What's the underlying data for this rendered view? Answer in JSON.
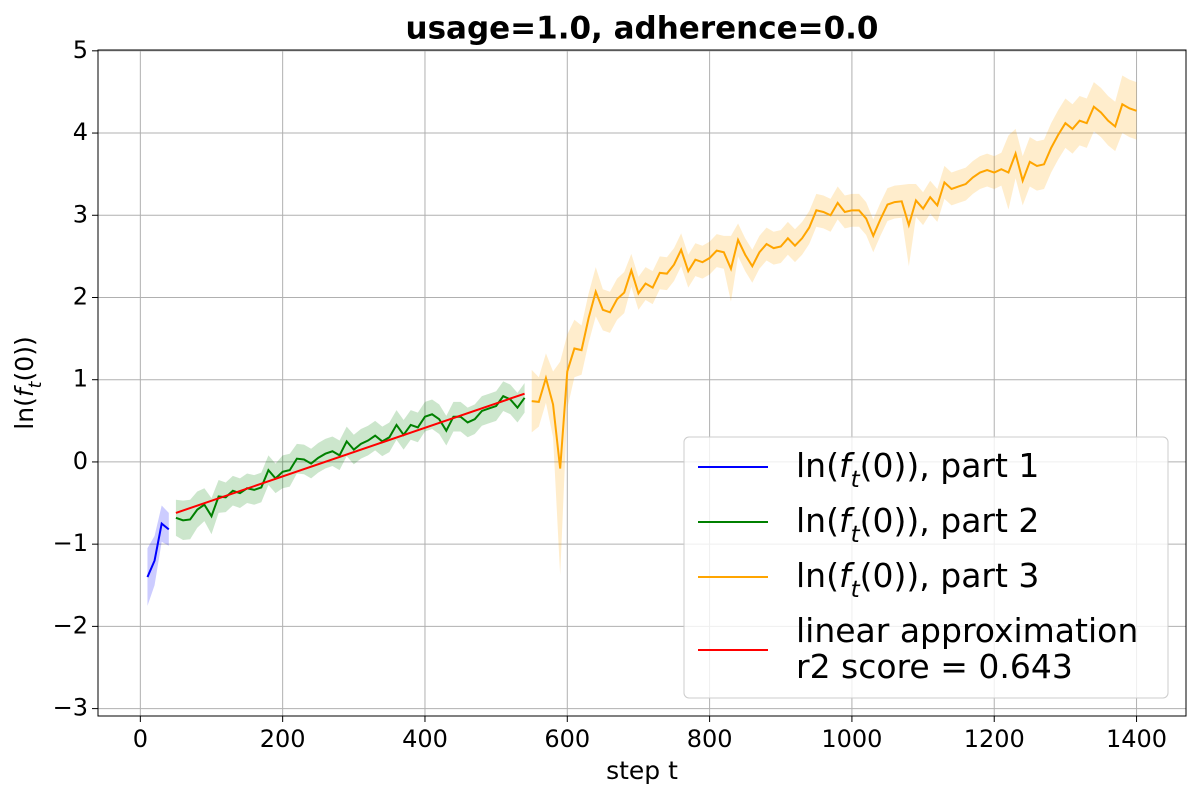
{
  "chart_data": {
    "type": "line",
    "title": "usage=1.0, adherence=0.0",
    "xlabel": "step t",
    "ylabel": "ln(f_t(0))",
    "xlim": [
      -59.5,
      1469.5
    ],
    "ylim": [
      -3.09,
      5.01
    ],
    "xticks": [
      0,
      200,
      400,
      600,
      800,
      1000,
      1200,
      1400
    ],
    "yticks": [
      {
        "value": -3,
        "label": "−3"
      },
      {
        "value": -2,
        "label": "−2"
      },
      {
        "value": -1,
        "label": "−1"
      },
      0,
      1,
      2,
      3,
      4,
      5
    ],
    "grid": true,
    "legend": "lower right",
    "series": [
      {
        "name": "ln(f_t(0)), part 1",
        "color": "#0000ff",
        "x": [
          10,
          20,
          30,
          40
        ],
        "values": [
          -1.4,
          -1.2,
          -0.75,
          -0.82
        ],
        "errors": [
          0.35,
          0.3,
          0.22,
          0.2
        ]
      },
      {
        "name": "ln(f_t(0)), part 2",
        "color": "#008000",
        "x": [
          50,
          60,
          70,
          80,
          90,
          100,
          110,
          120,
          130,
          140,
          150,
          160,
          170,
          180,
          190,
          200,
          210,
          220,
          230,
          240,
          250,
          260,
          270,
          280,
          290,
          300,
          310,
          320,
          330,
          340,
          350,
          360,
          370,
          380,
          390,
          400,
          410,
          420,
          430,
          440,
          450,
          460,
          470,
          480,
          490,
          500,
          510,
          520,
          530,
          540
        ],
        "values": [
          -0.68,
          -0.71,
          -0.7,
          -0.58,
          -0.52,
          -0.66,
          -0.42,
          -0.43,
          -0.35,
          -0.38,
          -0.32,
          -0.34,
          -0.31,
          -0.1,
          -0.2,
          -0.12,
          -0.1,
          0.04,
          0.03,
          -0.02,
          0.05,
          0.1,
          0.13,
          0.08,
          0.25,
          0.15,
          0.22,
          0.26,
          0.32,
          0.25,
          0.3,
          0.45,
          0.33,
          0.45,
          0.42,
          0.55,
          0.58,
          0.52,
          0.38,
          0.55,
          0.55,
          0.48,
          0.52,
          0.62,
          0.65,
          0.68,
          0.8,
          0.76,
          0.66,
          0.78
        ],
        "errors": [
          0.22,
          0.24,
          0.24,
          0.22,
          0.2,
          0.22,
          0.2,
          0.18,
          0.18,
          0.18,
          0.18,
          0.18,
          0.18,
          0.18,
          0.18,
          0.2,
          0.2,
          0.18,
          0.18,
          0.18,
          0.18,
          0.18,
          0.18,
          0.18,
          0.18,
          0.18,
          0.18,
          0.18,
          0.18,
          0.18,
          0.18,
          0.18,
          0.18,
          0.18,
          0.18,
          0.18,
          0.18,
          0.18,
          0.18,
          0.18,
          0.18,
          0.18,
          0.18,
          0.18,
          0.18,
          0.18,
          0.18,
          0.18,
          0.18,
          0.18
        ]
      },
      {
        "name": "ln(f_t(0)), part 3",
        "color": "#ffa500",
        "x": [
          550,
          560,
          570,
          580,
          590,
          600,
          610,
          620,
          630,
          640,
          650,
          660,
          670,
          680,
          690,
          700,
          710,
          720,
          730,
          740,
          750,
          760,
          770,
          780,
          790,
          800,
          810,
          820,
          830,
          840,
          850,
          860,
          870,
          880,
          890,
          900,
          910,
          920,
          930,
          940,
          950,
          960,
          970,
          980,
          990,
          1000,
          1010,
          1020,
          1030,
          1040,
          1050,
          1060,
          1070,
          1080,
          1090,
          1100,
          1110,
          1120,
          1130,
          1140,
          1150,
          1160,
          1170,
          1180,
          1190,
          1200,
          1210,
          1220,
          1230,
          1240,
          1250,
          1260,
          1270,
          1280,
          1290,
          1300,
          1310,
          1320,
          1330,
          1340,
          1350,
          1360,
          1370,
          1380,
          1390,
          1400
        ],
        "values": [
          0.74,
          0.73,
          1.02,
          0.7,
          -0.08,
          1.1,
          1.38,
          1.36,
          1.75,
          2.07,
          1.85,
          1.82,
          1.98,
          2.06,
          2.33,
          2.05,
          2.17,
          2.12,
          2.3,
          2.29,
          2.4,
          2.58,
          2.32,
          2.46,
          2.43,
          2.48,
          2.57,
          2.55,
          2.35,
          2.7,
          2.52,
          2.38,
          2.55,
          2.65,
          2.6,
          2.62,
          2.72,
          2.63,
          2.72,
          2.85,
          3.06,
          3.04,
          3.0,
          3.15,
          3.04,
          3.06,
          3.06,
          2.96,
          2.75,
          2.95,
          3.13,
          3.16,
          3.17,
          2.88,
          3.18,
          3.08,
          3.22,
          3.12,
          3.4,
          3.32,
          3.35,
          3.38,
          3.46,
          3.52,
          3.55,
          3.52,
          3.56,
          3.52,
          3.75,
          3.42,
          3.65,
          3.6,
          3.62,
          3.82,
          3.98,
          4.12,
          4.05,
          4.15,
          4.12,
          4.32,
          4.25,
          4.15,
          4.08,
          4.35,
          4.3,
          4.27
        ],
        "errors": [
          0.38,
          0.3,
          0.3,
          0.4,
          1.3,
          0.45,
          0.35,
          0.3,
          0.3,
          0.3,
          0.25,
          0.25,
          0.25,
          0.25,
          0.2,
          0.2,
          0.2,
          0.2,
          0.2,
          0.2,
          0.2,
          0.2,
          0.2,
          0.2,
          0.2,
          0.2,
          0.2,
          0.2,
          0.4,
          0.2,
          0.2,
          0.2,
          0.2,
          0.2,
          0.2,
          0.2,
          0.2,
          0.2,
          0.2,
          0.2,
          0.2,
          0.2,
          0.2,
          0.2,
          0.2,
          0.2,
          0.2,
          0.2,
          0.2,
          0.2,
          0.2,
          0.2,
          0.2,
          0.5,
          0.2,
          0.2,
          0.2,
          0.2,
          0.2,
          0.2,
          0.2,
          0.2,
          0.2,
          0.2,
          0.2,
          0.2,
          0.2,
          0.45,
          0.3,
          0.3,
          0.3,
          0.3,
          0.3,
          0.3,
          0.3,
          0.3,
          0.3,
          0.3,
          0.3,
          0.3,
          0.3,
          0.3,
          0.3,
          0.35,
          0.35,
          0.35
        ]
      },
      {
        "name": "linear approximation\nr2 score = 0.643",
        "color": "#ff0000",
        "x": [
          50,
          540
        ],
        "values": [
          -0.62,
          0.83
        ]
      }
    ]
  }
}
